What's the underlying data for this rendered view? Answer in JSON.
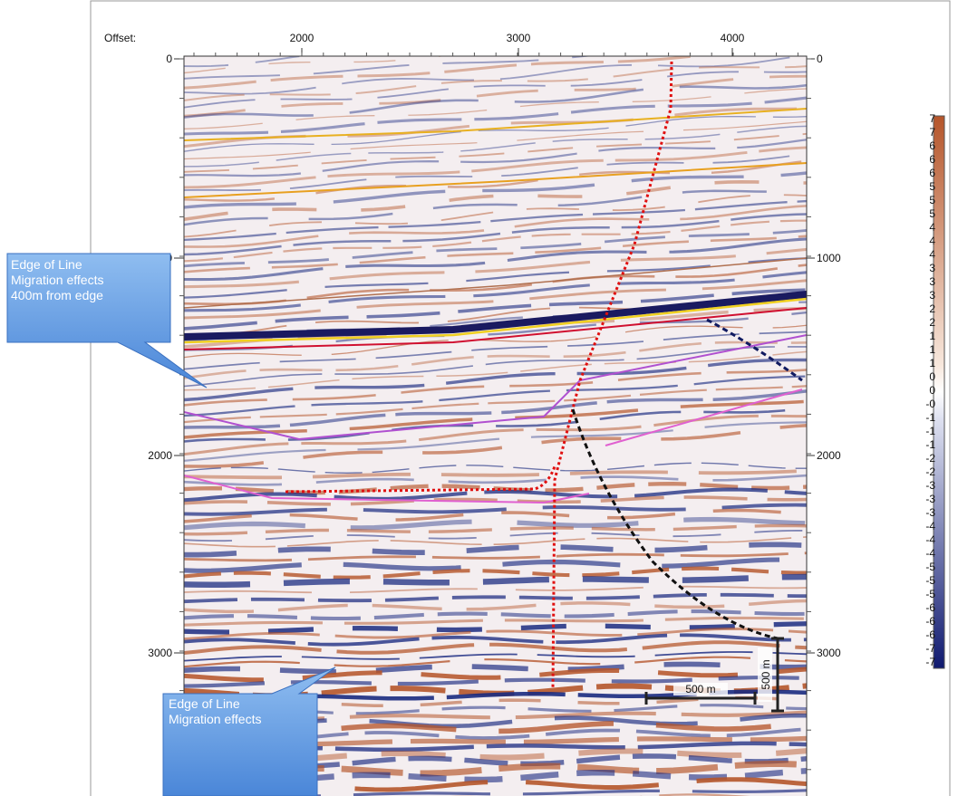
{
  "axis": {
    "x_label": "Offset:",
    "x_ticks": [
      "2000",
      "3000",
      "4000"
    ],
    "y_ticks_left": [
      "0",
      "1000",
      "2000",
      "3000"
    ],
    "y_ticks_right": [
      "0",
      "1000",
      "2000",
      "3000"
    ]
  },
  "colorbar": {
    "labels": [
      "7",
      "7",
      "6",
      "6",
      "6",
      "5",
      "5",
      "5",
      "4",
      "4",
      "4",
      "3",
      "3",
      "3",
      "2",
      "2",
      "1",
      "1",
      "1",
      "0",
      "0",
      "-0",
      "-1",
      "-1",
      "-1",
      "-2",
      "-2",
      "-3",
      "-3",
      "-3",
      "-4",
      "-4",
      "-4",
      "-5",
      "-5",
      "-5",
      "-6",
      "-6",
      "-6",
      "-7",
      "-7"
    ]
  },
  "callouts": [
    {
      "lines": [
        "Edge of Line",
        "Migration effects",
        "400m from edge"
      ]
    },
    {
      "lines": [
        "Edge of Line",
        "Migration effects"
      ]
    }
  ],
  "scale_bars": {
    "vertical": "500 m",
    "horizontal": "500 m"
  }
}
